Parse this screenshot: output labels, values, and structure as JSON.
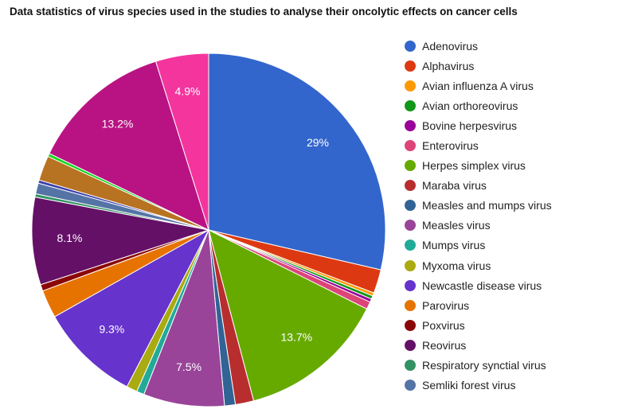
{
  "chart_data": {
    "type": "pie",
    "title": "Data statistics of virus species used in the studies to analyse their oncolytic effects on cancer cells",
    "legend_position": "right",
    "start_angle_deg": 0,
    "direction": "clockwise",
    "slices": [
      {
        "label": "Adenovirus",
        "value": 29.0,
        "color": "#3366cc",
        "show_label": "29%"
      },
      {
        "label": "Alphavirus",
        "value": 2.2,
        "color": "#dc3912",
        "show_label": ""
      },
      {
        "label": "Avian influenza A virus",
        "value": 0.3,
        "color": "#ff9900",
        "show_label": ""
      },
      {
        "label": "Avian orthoreovirus",
        "value": 0.3,
        "color": "#109618",
        "show_label": ""
      },
      {
        "label": "Bovine herpesvirus",
        "value": 0.3,
        "color": "#990099",
        "show_label": ""
      },
      {
        "label": "Enterovirus",
        "value": 0.7,
        "color": "#dd4477",
        "show_label": ""
      },
      {
        "label": "Herpes simplex virus",
        "value": 13.7,
        "color": "#66aa00",
        "show_label": "13.7%"
      },
      {
        "label": "Maraba virus",
        "value": 1.7,
        "color": "#b82e2e",
        "show_label": ""
      },
      {
        "label": "Measles and mumps virus",
        "value": 1.0,
        "color": "#316395",
        "show_label": ""
      },
      {
        "label": "Measles virus",
        "value": 7.5,
        "color": "#994499",
        "show_label": "7.5%"
      },
      {
        "label": "Mumps virus",
        "value": 0.7,
        "color": "#22aa99",
        "show_label": ""
      },
      {
        "label": "Myxoma virus",
        "value": 1.0,
        "color": "#aaaa11",
        "show_label": ""
      },
      {
        "label": "Newcastle disease virus",
        "value": 9.3,
        "color": "#6633cc",
        "show_label": "9.3%"
      },
      {
        "label": "Parovirus",
        "value": 2.6,
        "color": "#e67300",
        "show_label": ""
      },
      {
        "label": "Poxvirus",
        "value": 0.6,
        "color": "#8b0707",
        "show_label": ""
      },
      {
        "label": "Reovirus",
        "value": 8.1,
        "color": "#651067",
        "show_label": "8.1%"
      },
      {
        "label": "Respiratory synctial virus",
        "value": 0.3,
        "color": "#329262",
        "show_label": ""
      },
      {
        "label": "Semliki forest virus",
        "value": 1.0,
        "color": "#5574a6",
        "show_label": ""
      },
      {
        "label": "",
        "value": 0.3,
        "color": "#3b3eac",
        "show_label": ""
      },
      {
        "label": "",
        "value": 2.3,
        "color": "#b77322",
        "show_label": ""
      },
      {
        "label": "",
        "value": 0.3,
        "color": "#16d620",
        "show_label": ""
      },
      {
        "label": "",
        "value": 13.2,
        "color": "#b91383",
        "show_label": "13.2%"
      },
      {
        "label": "",
        "value": 4.9,
        "color": "#f4359e",
        "show_label": "4.9%"
      }
    ]
  }
}
